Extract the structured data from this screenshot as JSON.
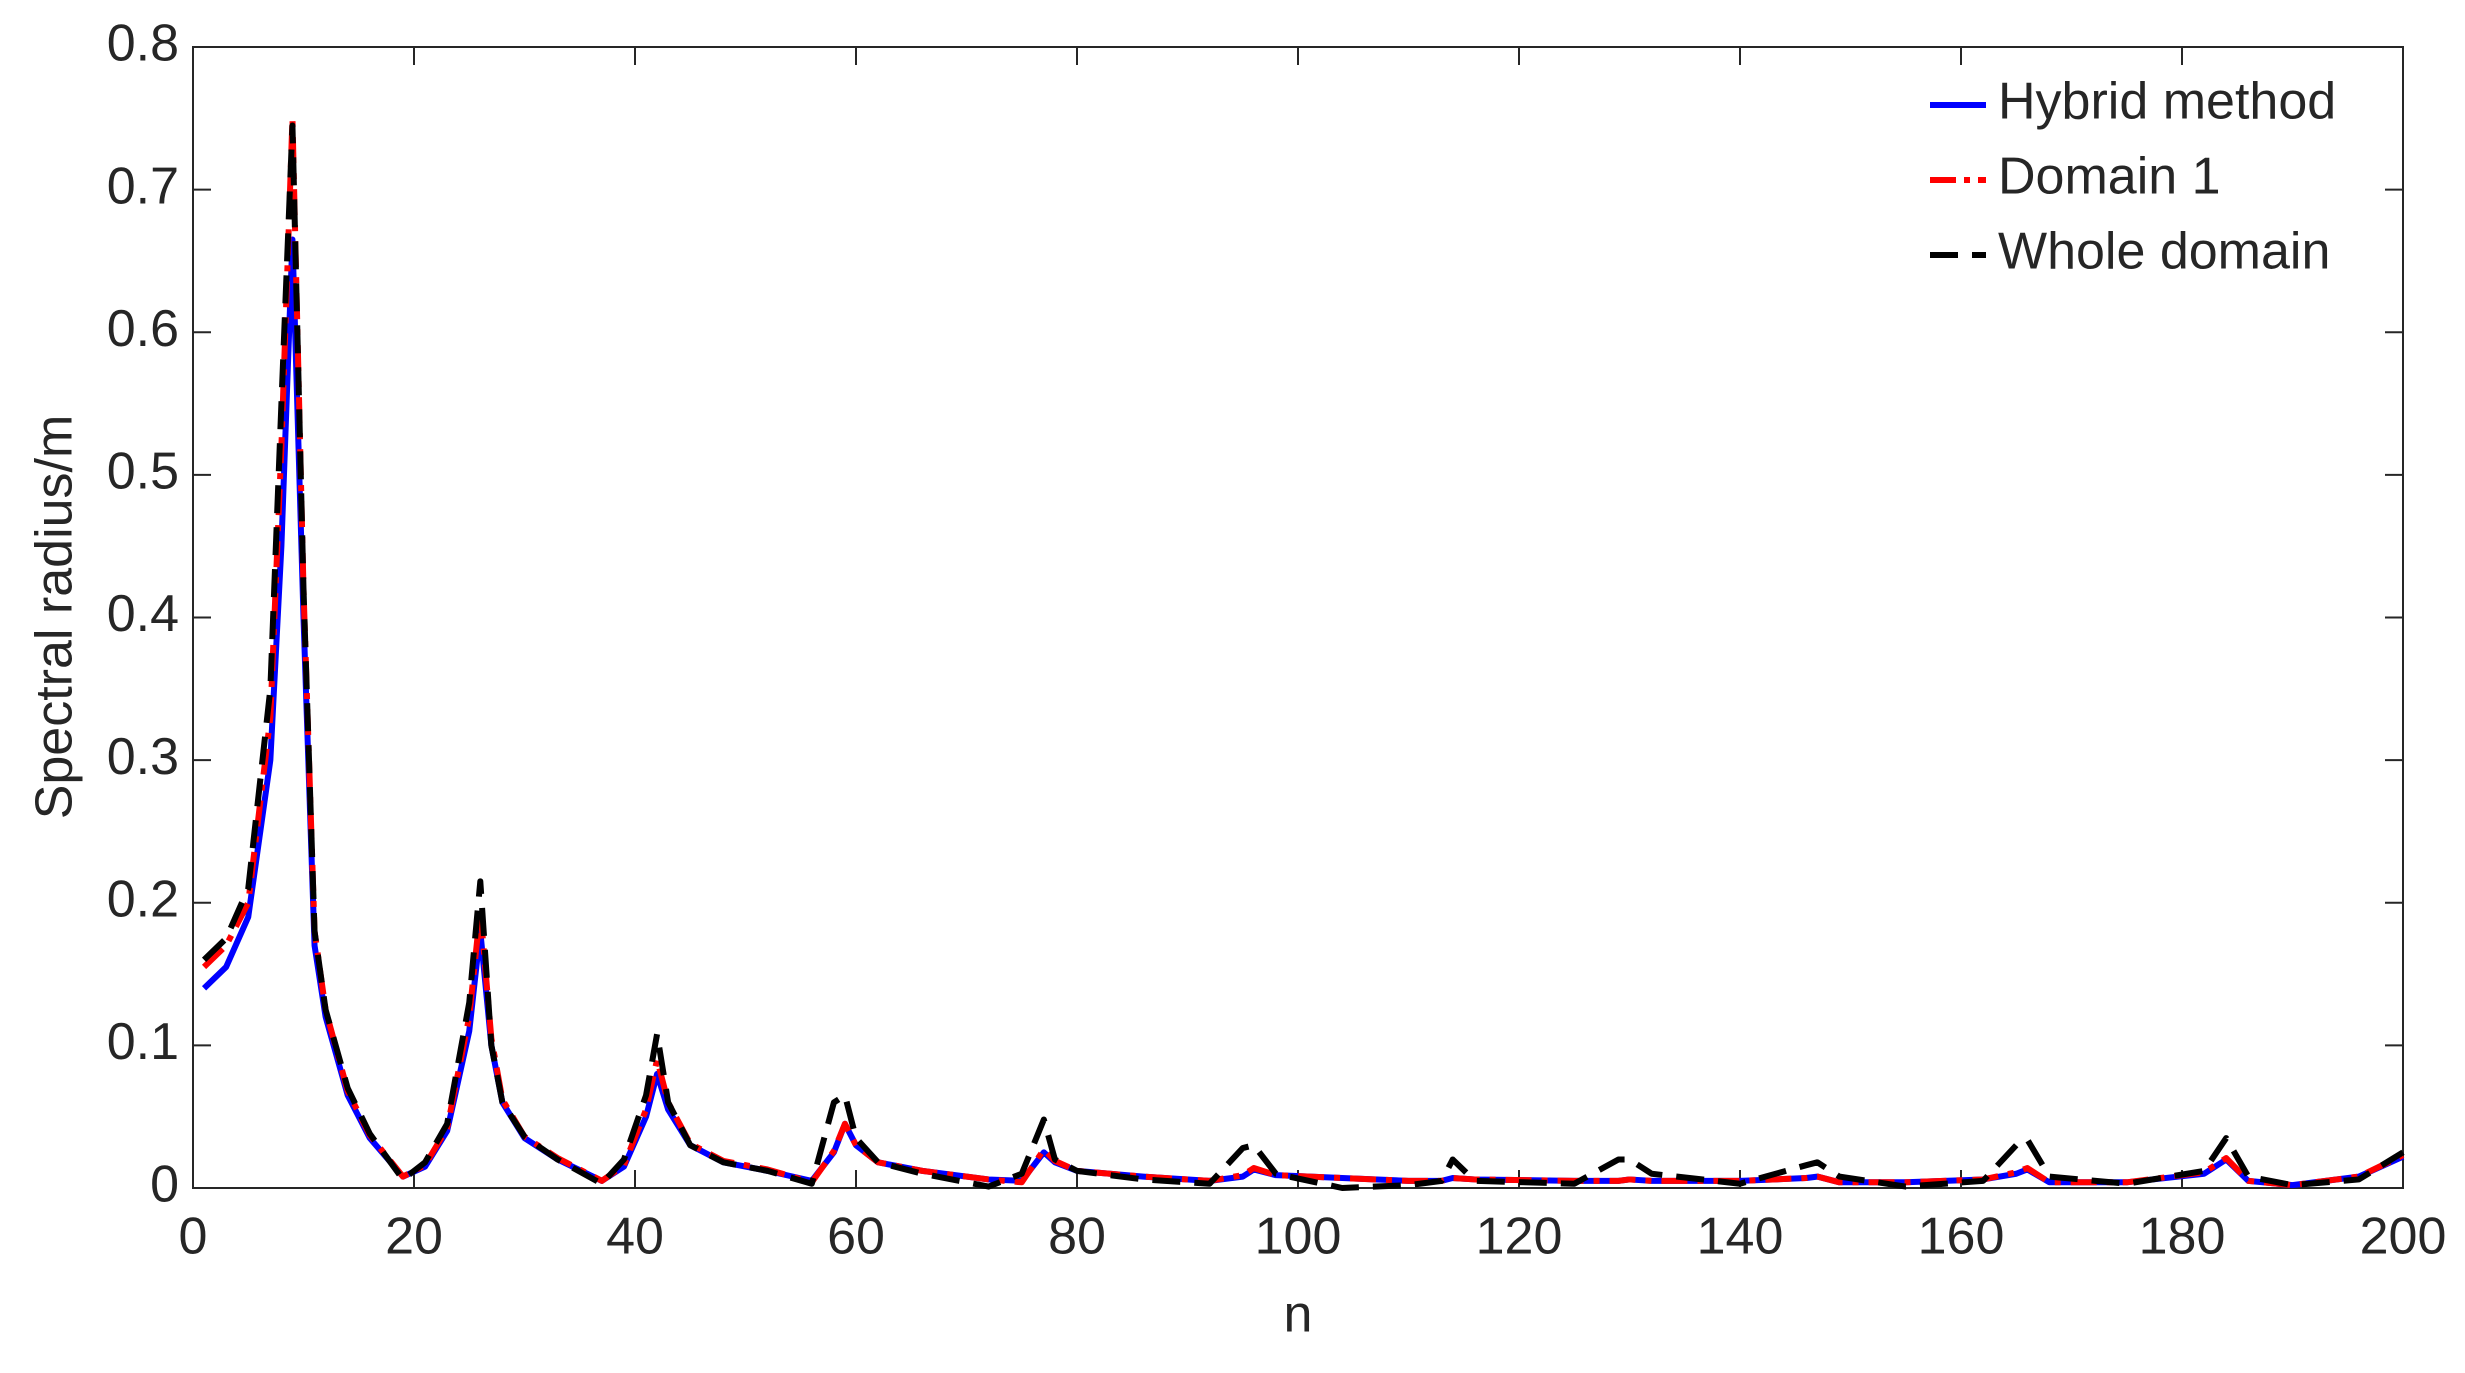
{
  "chart_data": {
    "type": "line",
    "xlabel": "n",
    "ylabel": "Spectral radius/m",
    "x": [
      1,
      3,
      5,
      7,
      8,
      9,
      10,
      11,
      12,
      14,
      16,
      19,
      21,
      23,
      25,
      26,
      27,
      28,
      30,
      33,
      37,
      39,
      41,
      42,
      43,
      45,
      48,
      52,
      56,
      58,
      59,
      60,
      62,
      66,
      72,
      75,
      77,
      78,
      80,
      86,
      92,
      95,
      96,
      98,
      104,
      110,
      113,
      114,
      116,
      125,
      129,
      130,
      132,
      140,
      146,
      147,
      149,
      155,
      162,
      165,
      166,
      168,
      175,
      182,
      184,
      186,
      190,
      196,
      200
    ],
    "series": [
      {
        "name": "Hybrid method",
        "color": "#0000ff",
        "dash": "solid",
        "values": [
          0.14,
          0.155,
          0.19,
          0.3,
          0.45,
          0.665,
          0.4,
          0.17,
          0.12,
          0.065,
          0.035,
          0.008,
          0.015,
          0.04,
          0.11,
          0.18,
          0.1,
          0.06,
          0.035,
          0.02,
          0.005,
          0.015,
          0.05,
          0.08,
          0.055,
          0.03,
          0.018,
          0.012,
          0.005,
          0.025,
          0.045,
          0.03,
          0.018,
          0.012,
          0.006,
          0.005,
          0.025,
          0.018,
          0.012,
          0.008,
          0.005,
          0.008,
          0.013,
          0.009,
          0.007,
          0.005,
          0.005,
          0.007,
          0.006,
          0.005,
          0.005,
          0.006,
          0.005,
          0.005,
          0.007,
          0.008,
          0.004,
          0.004,
          0.006,
          0.01,
          0.013,
          0.004,
          0.004,
          0.01,
          0.02,
          0.005,
          0.002,
          0.008,
          0.022
        ]
      },
      {
        "name": "Domain 1",
        "color": "#ff0000",
        "dash": "dashdot",
        "values": [
          0.155,
          0.17,
          0.2,
          0.33,
          0.52,
          0.75,
          0.42,
          0.18,
          0.125,
          0.068,
          0.037,
          0.008,
          0.016,
          0.042,
          0.12,
          0.195,
          0.105,
          0.062,
          0.036,
          0.021,
          0.005,
          0.016,
          0.055,
          0.09,
          0.06,
          0.031,
          0.019,
          0.013,
          0.004,
          0.026,
          0.045,
          0.03,
          0.018,
          0.012,
          0.006,
          0.004,
          0.027,
          0.019,
          0.012,
          0.008,
          0.005,
          0.009,
          0.014,
          0.009,
          0.007,
          0.005,
          0.005,
          0.007,
          0.006,
          0.005,
          0.005,
          0.006,
          0.005,
          0.005,
          0.007,
          0.008,
          0.004,
          0.004,
          0.006,
          0.011,
          0.014,
          0.004,
          0.004,
          0.011,
          0.021,
          0.005,
          0.002,
          0.008,
          0.023
        ]
      },
      {
        "name": "Whole domain",
        "color": "#000000",
        "dash": "dashed",
        "values": [
          0.16,
          0.175,
          0.21,
          0.35,
          0.55,
          0.745,
          0.42,
          0.18,
          0.125,
          0.07,
          0.038,
          0.006,
          0.018,
          0.045,
          0.13,
          0.215,
          0.1,
          0.06,
          0.036,
          0.02,
          0.003,
          0.02,
          0.065,
          0.108,
          0.06,
          0.03,
          0.018,
          0.012,
          0.003,
          0.06,
          0.065,
          0.035,
          0.018,
          0.01,
          0.001,
          0.01,
          0.048,
          0.02,
          0.012,
          0.006,
          0.003,
          0.028,
          0.03,
          0.01,
          0.0,
          0.002,
          0.005,
          0.02,
          0.005,
          0.003,
          0.02,
          0.02,
          0.01,
          0.003,
          0.016,
          0.018,
          0.008,
          0.001,
          0.005,
          0.03,
          0.034,
          0.008,
          0.003,
          0.012,
          0.035,
          0.008,
          0.002,
          0.006,
          0.025
        ]
      }
    ],
    "xlim": [
      0,
      200
    ],
    "xticks": [
      0,
      20,
      40,
      60,
      80,
      100,
      120,
      140,
      160,
      180,
      200
    ],
    "ylim": [
      0,
      0.8
    ],
    "yticks": [
      0,
      0.1,
      0.2,
      0.3,
      0.4,
      0.5,
      0.6,
      0.7,
      0.8
    ],
    "legend": "northeast",
    "grid": false
  }
}
